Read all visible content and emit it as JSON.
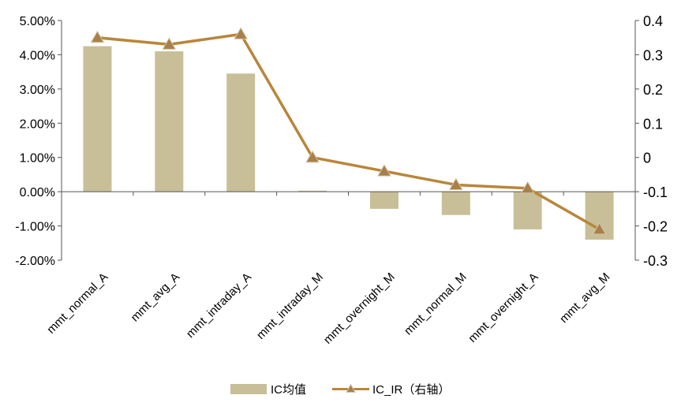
{
  "chart_data": {
    "type": "bar",
    "title": "",
    "xlabel": "",
    "ylabel": "",
    "categories": [
      "mmt_normal_A",
      "mmt_avg_A",
      "mmt_intraday_A",
      "mmt_intraday_M",
      "mmt_overnight_M",
      "mmt_normal_M",
      "mmt_overnight_A",
      "mmt_avg_M"
    ],
    "series": [
      {
        "name": "IC均值",
        "type": "bar",
        "axis": "left",
        "color": "#c8bf98",
        "values": [
          0.0425,
          0.041,
          0.0345,
          0.0003,
          -0.005,
          -0.0068,
          -0.011,
          -0.014
        ]
      },
      {
        "name": "IC_IR（右轴）",
        "type": "line",
        "axis": "right",
        "color": "#b8863b",
        "marker_color": "#a9804a",
        "values": [
          0.35,
          0.33,
          0.36,
          0.0,
          -0.04,
          -0.08,
          -0.09,
          -0.21
        ]
      }
    ],
    "y_left": {
      "ylim": [
        -0.02,
        0.05
      ],
      "ticks": [
        0.05,
        0.04,
        0.03,
        0.02,
        0.01,
        0.0,
        -0.01,
        -0.02
      ],
      "tick_labels": [
        "5.00%",
        "4.00%",
        "3.00%",
        "2.00%",
        "1.00%",
        "0.00%",
        "-1.00%",
        "-2.00%"
      ]
    },
    "y_right": {
      "ylim": [
        -0.3,
        0.4
      ],
      "ticks": [
        0.4,
        0.3,
        0.2,
        0.1,
        0.0,
        -0.1,
        -0.2,
        -0.3
      ],
      "tick_labels": [
        "0.4",
        "0.3",
        "0.2",
        "0.1",
        "0",
        "-0.1",
        "-0.2",
        "-0.3"
      ]
    },
    "grid": false,
    "legend": {
      "position": "bottom-center",
      "entries": [
        "IC均值",
        "IC_IR（右轴）"
      ]
    }
  }
}
